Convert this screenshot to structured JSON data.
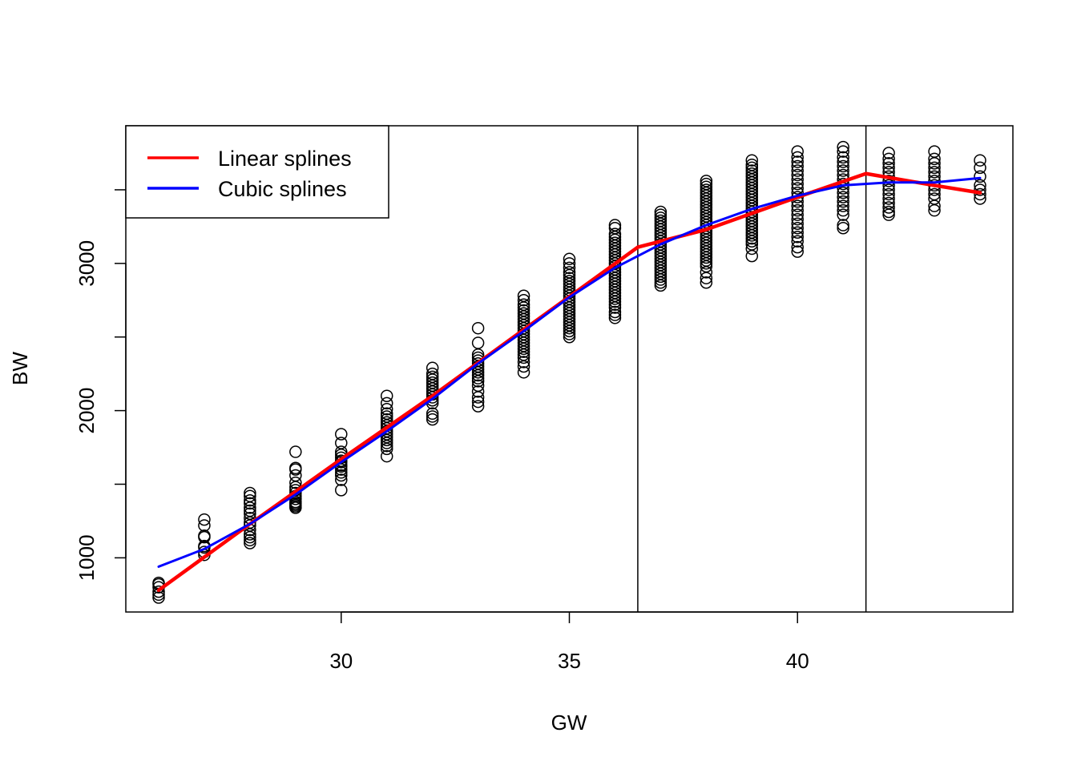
{
  "chart_data": {
    "type": "scatter",
    "title": "",
    "xlabel": "GW",
    "ylabel": "BW",
    "xlim": [
      25.28,
      44.72
    ],
    "ylim": [
      632,
      3935
    ],
    "x_ticks": [
      30,
      35,
      40
    ],
    "y_ticks": [
      1000,
      2000,
      3000
    ],
    "knots": [
      36.5,
      41.5
    ],
    "grid": false,
    "legend_position": "top-left",
    "points": [
      {
        "gw": 26,
        "bw": [
          730,
          750,
          770,
          800,
          820,
          830
        ]
      },
      {
        "gw": 27,
        "bw": [
          1020,
          1040,
          1070,
          1080,
          1140,
          1150,
          1220,
          1260
        ]
      },
      {
        "gw": 28,
        "bw": [
          1100,
          1120,
          1140,
          1160,
          1190,
          1220,
          1240,
          1270,
          1300,
          1320,
          1340,
          1370,
          1390,
          1420,
          1440
        ]
      },
      {
        "gw": 29,
        "bw": [
          1340,
          1350,
          1360,
          1370,
          1380,
          1400,
          1420,
          1440,
          1460,
          1480,
          1510,
          1560,
          1600,
          1610,
          1720
        ]
      },
      {
        "gw": 30,
        "bw": [
          1460,
          1530,
          1560,
          1580,
          1600,
          1620,
          1630,
          1650,
          1660,
          1680,
          1700,
          1720,
          1780,
          1840
        ]
      },
      {
        "gw": 31,
        "bw": [
          1690,
          1740,
          1760,
          1780,
          1800,
          1820,
          1840,
          1860,
          1880,
          1900,
          1920,
          1940,
          1960,
          1980,
          2010,
          2050,
          2100
        ]
      },
      {
        "gw": 32,
        "bw": [
          1940,
          1960,
          1980,
          2050,
          2070,
          2090,
          2110,
          2130,
          2150,
          2170,
          2190,
          2210,
          2230,
          2250,
          2290
        ]
      },
      {
        "gw": 33,
        "bw": [
          2030,
          2060,
          2090,
          2130,
          2170,
          2200,
          2220,
          2240,
          2260,
          2280,
          2300,
          2320,
          2340,
          2360,
          2380,
          2460,
          2560
        ]
      },
      {
        "gw": 34,
        "bw": [
          2260,
          2300,
          2330,
          2360,
          2380,
          2400,
          2420,
          2440,
          2460,
          2480,
          2500,
          2520,
          2540,
          2560,
          2580,
          2600,
          2620,
          2640,
          2660,
          2680,
          2700,
          2720,
          2750,
          2780
        ]
      },
      {
        "gw": 35,
        "bw": [
          2500,
          2520,
          2540,
          2560,
          2580,
          2600,
          2620,
          2640,
          2660,
          2680,
          2700,
          2720,
          2740,
          2760,
          2780,
          2800,
          2820,
          2840,
          2860,
          2880,
          2900,
          2920,
          2940,
          2970,
          3000,
          3030
        ]
      },
      {
        "gw": 36,
        "bw": [
          2630,
          2650,
          2670,
          2700,
          2720,
          2740,
          2760,
          2780,
          2800,
          2820,
          2840,
          2860,
          2880,
          2900,
          2920,
          2940,
          2960,
          2980,
          3000,
          3020,
          3040,
          3060,
          3080,
          3100,
          3120,
          3140,
          3160,
          3180,
          3200,
          3240,
          3260
        ]
      },
      {
        "gw": 37,
        "bw": [
          2850,
          2870,
          2890,
          2910,
          2930,
          2950,
          2970,
          2990,
          3010,
          3030,
          3050,
          3070,
          3090,
          3110,
          3130,
          3150,
          3170,
          3190,
          3210,
          3230,
          3250,
          3270,
          3290,
          3310,
          3330,
          3350
        ]
      },
      {
        "gw": 38,
        "bw": [
          2870,
          2900,
          2940,
          2980,
          3000,
          3020,
          3040,
          3060,
          3080,
          3100,
          3120,
          3140,
          3160,
          3180,
          3200,
          3220,
          3240,
          3260,
          3280,
          3300,
          3320,
          3340,
          3360,
          3380,
          3400,
          3420,
          3440,
          3460,
          3480,
          3500,
          3520,
          3540,
          3560
        ]
      },
      {
        "gw": 39,
        "bw": [
          3050,
          3100,
          3130,
          3150,
          3170,
          3190,
          3210,
          3230,
          3250,
          3270,
          3290,
          3310,
          3330,
          3350,
          3370,
          3390,
          3410,
          3430,
          3450,
          3470,
          3490,
          3510,
          3530,
          3550,
          3570,
          3590,
          3610,
          3630,
          3650,
          3670,
          3700
        ]
      },
      {
        "gw": 40,
        "bw": [
          3080,
          3110,
          3150,
          3180,
          3210,
          3240,
          3270,
          3300,
          3330,
          3360,
          3390,
          3420,
          3450,
          3480,
          3510,
          3540,
          3570,
          3600,
          3630,
          3660,
          3690,
          3720,
          3760
        ]
      },
      {
        "gw": 41,
        "bw": [
          3240,
          3260,
          3330,
          3360,
          3390,
          3420,
          3450,
          3480,
          3510,
          3540,
          3570,
          3600,
          3630,
          3660,
          3690,
          3720,
          3760,
          3790
        ]
      },
      {
        "gw": 42,
        "bw": [
          3330,
          3350,
          3380,
          3410,
          3440,
          3470,
          3500,
          3530,
          3560,
          3590,
          3620,
          3650,
          3680,
          3710,
          3750
        ]
      },
      {
        "gw": 43,
        "bw": [
          3360,
          3390,
          3440,
          3470,
          3500,
          3530,
          3560,
          3590,
          3620,
          3650,
          3680,
          3710,
          3760
        ]
      },
      {
        "gw": 44,
        "bw": [
          3440,
          3470,
          3500,
          3530,
          3590,
          3650,
          3700
        ]
      }
    ],
    "series": [
      {
        "name": "Linear splines",
        "color": "#ff0000",
        "x": [
          26,
          28,
          30,
          32,
          34,
          36.5,
          38,
          40,
          41.5,
          43,
          44
        ],
        "y": [
          780,
          1230,
          1670,
          2100,
          2550,
          3110,
          3230,
          3450,
          3610,
          3530,
          3480
        ]
      },
      {
        "name": "Cubic splines",
        "color": "#0000ff",
        "x": [
          26,
          27,
          28,
          29,
          30,
          31,
          32,
          33,
          34,
          35,
          36,
          37,
          38,
          39,
          40,
          41,
          42,
          43,
          44
        ],
        "y": [
          940,
          1060,
          1230,
          1430,
          1650,
          1860,
          2080,
          2320,
          2540,
          2770,
          2970,
          3130,
          3260,
          3370,
          3460,
          3530,
          3550,
          3550,
          3580
        ]
      }
    ]
  }
}
